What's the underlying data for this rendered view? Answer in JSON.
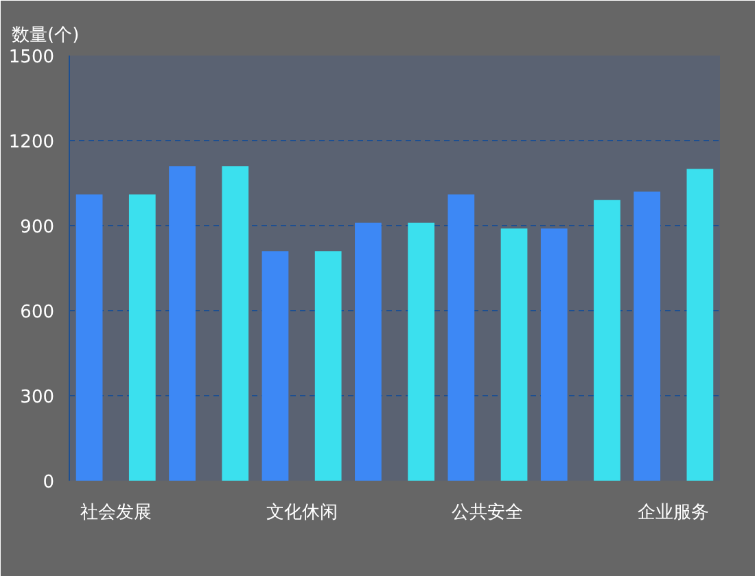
{
  "chart_data": {
    "type": "bar",
    "ylabel": "数量(个)",
    "categories": [
      "社会发展",
      null,
      "文化休闲",
      null,
      "公共安全",
      null,
      "企业服务"
    ],
    "series": [
      {
        "color": "#3d88f5",
        "values": [
          1010,
          1110,
          810,
          910,
          1010,
          890,
          1020
        ]
      },
      {
        "color": "#3be0ee",
        "values": [
          1010,
          1110,
          810,
          910,
          890,
          990,
          1100
        ]
      }
    ],
    "ylim": [
      0,
      1500
    ],
    "yticks": [
      0,
      300,
      600,
      900,
      1200,
      1500
    ],
    "grid": "y"
  }
}
